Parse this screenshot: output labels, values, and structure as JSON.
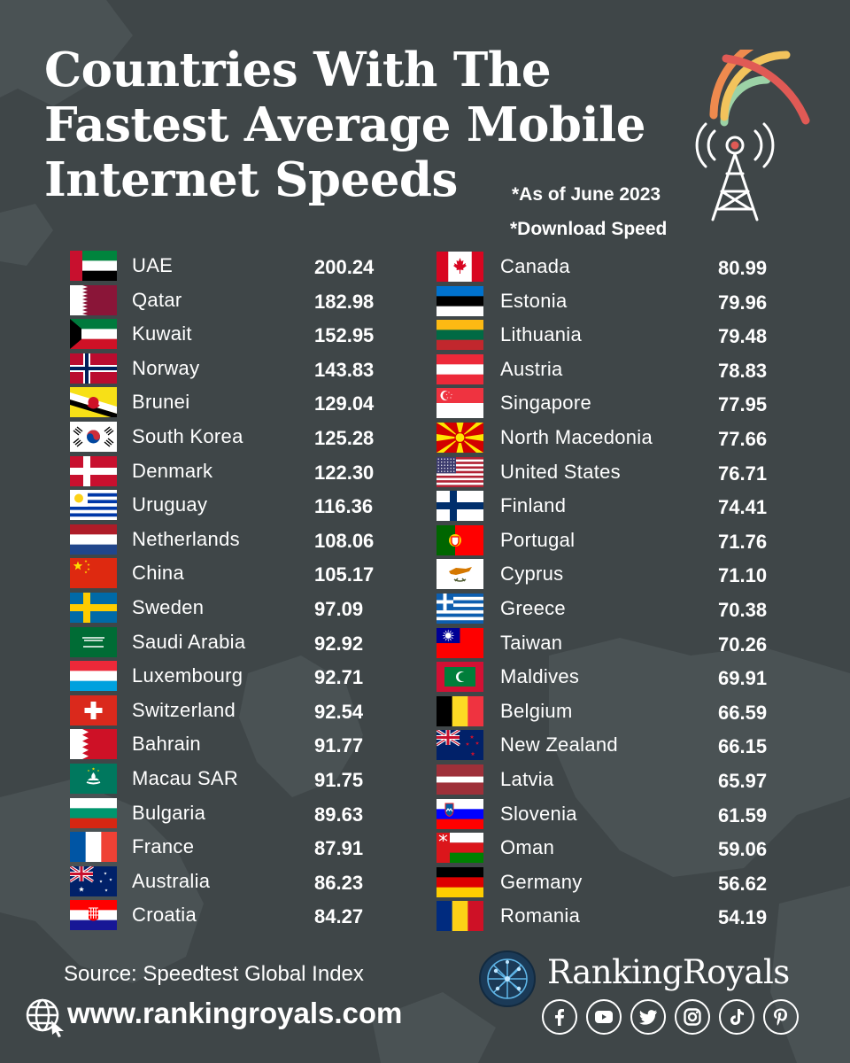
{
  "title": "Countries With The Fastest Average Mobile Internet Speeds",
  "notes": {
    "date": "*As of June 2023",
    "metric": "*Download Speed"
  },
  "left_column": [
    {
      "country": "UAE",
      "speed": "200.24",
      "flag": "uae-flag"
    },
    {
      "country": "Qatar",
      "speed": "182.98",
      "flag": "qatar-flag"
    },
    {
      "country": "Kuwait",
      "speed": "152.95",
      "flag": "kuwait-flag"
    },
    {
      "country": "Norway",
      "speed": "143.83",
      "flag": "norway-flag"
    },
    {
      "country": "Brunei",
      "speed": "129.04",
      "flag": "brunei-flag"
    },
    {
      "country": "South Korea",
      "speed": "125.28",
      "flag": "south-korea-flag"
    },
    {
      "country": "Denmark",
      "speed": "122.30",
      "flag": "denmark-flag"
    },
    {
      "country": "Uruguay",
      "speed": "116.36",
      "flag": "uruguay-flag"
    },
    {
      "country": "Netherlands",
      "speed": "108.06",
      "flag": "netherlands-flag"
    },
    {
      "country": "China",
      "speed": "105.17",
      "flag": "china-flag"
    },
    {
      "country": "Sweden",
      "speed": "97.09",
      "flag": "sweden-flag"
    },
    {
      "country": "Saudi Arabia",
      "speed": "92.92",
      "flag": "saudi-arabia-flag"
    },
    {
      "country": "Luxembourg",
      "speed": "92.71",
      "flag": "luxembourg-flag"
    },
    {
      "country": "Switzerland",
      "speed": "92.54",
      "flag": "switzerland-flag"
    },
    {
      "country": "Bahrain",
      "speed": "91.77",
      "flag": "bahrain-flag"
    },
    {
      "country": "Macau SAR",
      "speed": "91.75",
      "flag": "macau-flag"
    },
    {
      "country": "Bulgaria",
      "speed": "89.63",
      "flag": "bulgaria-flag"
    },
    {
      "country": "France",
      "speed": "87.91",
      "flag": "france-flag"
    },
    {
      "country": "Australia",
      "speed": "86.23",
      "flag": "australia-flag"
    },
    {
      "country": "Croatia",
      "speed": "84.27",
      "flag": "croatia-flag"
    }
  ],
  "right_column": [
    {
      "country": "Canada",
      "speed": "80.99",
      "flag": "canada-flag"
    },
    {
      "country": "Estonia",
      "speed": "79.96",
      "flag": "estonia-flag"
    },
    {
      "country": "Lithuania",
      "speed": "79.48",
      "flag": "lithuania-flag"
    },
    {
      "country": "Austria",
      "speed": "78.83",
      "flag": "austria-flag"
    },
    {
      "country": "Singapore",
      "speed": "77.95",
      "flag": "singapore-flag"
    },
    {
      "country": "North Macedonia",
      "speed": "77.66",
      "flag": "north-macedonia-flag"
    },
    {
      "country": "United States",
      "speed": "76.71",
      "flag": "united-states-flag"
    },
    {
      "country": "Finland",
      "speed": "74.41",
      "flag": "finland-flag"
    },
    {
      "country": "Portugal",
      "speed": "71.76",
      "flag": "portugal-flag"
    },
    {
      "country": "Cyprus",
      "speed": "71.10",
      "flag": "cyprus-flag"
    },
    {
      "country": "Greece",
      "speed": "70.38",
      "flag": "greece-flag"
    },
    {
      "country": "Taiwan",
      "speed": "70.26",
      "flag": "taiwan-flag"
    },
    {
      "country": "Maldives",
      "speed": "69.91",
      "flag": "maldives-flag"
    },
    {
      "country": "Belgium",
      "speed": "66.59",
      "flag": "belgium-flag"
    },
    {
      "country": "New Zealand",
      "speed": "66.15",
      "flag": "new-zealand-flag"
    },
    {
      "country": "Latvia",
      "speed": "65.97",
      "flag": "latvia-flag"
    },
    {
      "country": "Slovenia",
      "speed": "61.59",
      "flag": "slovenia-flag"
    },
    {
      "country": "Oman",
      "speed": "59.06",
      "flag": "oman-flag"
    },
    {
      "country": "Germany",
      "speed": "56.62",
      "flag": "germany-flag"
    },
    {
      "country": "Romania",
      "speed": "54.19",
      "flag": "romania-flag"
    }
  ],
  "footer": {
    "source": "Source: Speedtest Global Index",
    "website": "www.rankingroyals.com",
    "brand": "RankingRoyals",
    "socials": [
      "facebook-icon",
      "youtube-icon",
      "twitter-icon",
      "instagram-icon",
      "tiktok-icon",
      "pinterest-icon"
    ]
  },
  "colors": {
    "background": "#3f4648",
    "map": "#4a5254",
    "signal_red": "#e05a55",
    "signal_orange": "#ee8a4e",
    "signal_yellow": "#f2c35c",
    "signal_green": "#9cd2a6",
    "text": "#ffffff"
  }
}
